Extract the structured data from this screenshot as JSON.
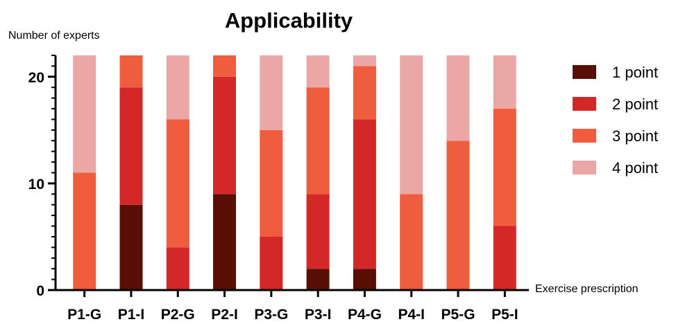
{
  "chart_data": {
    "type": "bar",
    "stacked": true,
    "title": "Applicability",
    "ylabel": "Number of experts",
    "xlabel": "Exercise prescription",
    "ylim": [
      0,
      22
    ],
    "yticks": [
      0,
      10,
      20
    ],
    "minor_ytick_step": 1,
    "grid": false,
    "legend_position": "right",
    "categories": [
      "P1-G",
      "P1-I",
      "P2-G",
      "P2-I",
      "P3-G",
      "P3-I",
      "P4-G",
      "P4-I",
      "P5-G",
      "P5-I"
    ],
    "series": [
      {
        "name": "1 point",
        "color": "#5a0f06",
        "values": [
          0,
          8,
          0,
          9,
          0,
          2,
          2,
          0,
          0,
          0
        ]
      },
      {
        "name": "2 point",
        "color": "#d42828",
        "values": [
          0,
          11,
          4,
          11,
          5,
          7,
          14,
          0,
          0,
          6
        ]
      },
      {
        "name": "3 point",
        "color": "#ef5d3e",
        "values": [
          11,
          3,
          12,
          2,
          10,
          10,
          5,
          9,
          14,
          11
        ]
      },
      {
        "name": "4 point",
        "color": "#eba6a6",
        "values": [
          11,
          0,
          6,
          0,
          7,
          3,
          1,
          13,
          8,
          5
        ]
      }
    ]
  }
}
